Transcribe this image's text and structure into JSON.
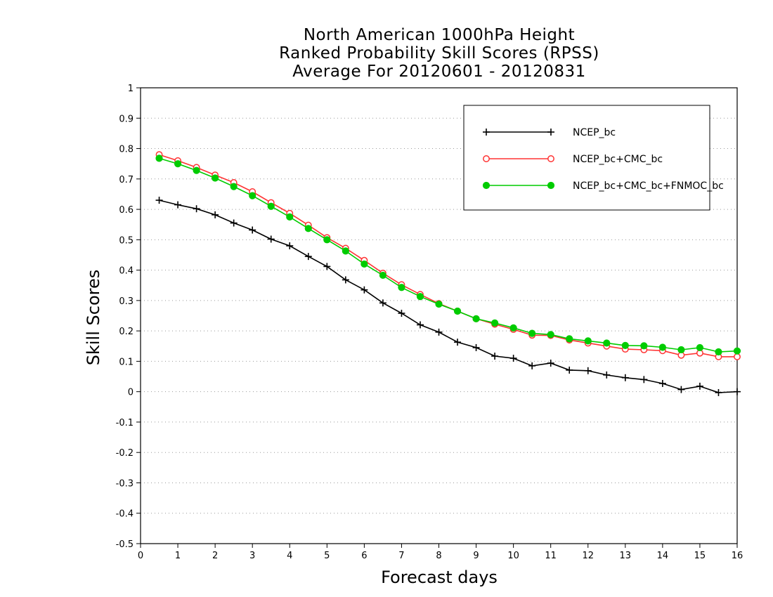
{
  "chart_data": {
    "type": "line",
    "title": [
      "North American 1000hPa Height",
      "Ranked Probability Skill Scores (RPSS)",
      "Average For 20120601 - 20120831"
    ],
    "xlabel": "Forecast days",
    "ylabel": "Skill Scores",
    "xlim": [
      0,
      16
    ],
    "ylim": [
      -0.5,
      1
    ],
    "xticks": [
      0,
      1,
      2,
      3,
      4,
      5,
      6,
      7,
      8,
      9,
      10,
      11,
      12,
      13,
      14,
      15,
      16
    ],
    "yticks": [
      -0.5,
      -0.4,
      -0.3,
      -0.2,
      -0.1,
      0,
      0.1,
      0.2,
      0.3,
      0.4,
      0.5,
      0.6,
      0.7,
      0.8,
      0.9,
      1
    ],
    "ytick_labels": [
      "-0.5",
      "-0.4",
      "-0.3",
      "-0.2",
      "-0.1",
      "0",
      "0.1",
      "0.2",
      "0.3",
      "0.4",
      "0.5",
      "0.6",
      "0.7",
      "0.8",
      "0.9",
      "1"
    ],
    "grid": "horizontal dotted",
    "legend_position": "top-right",
    "x": [
      0.5,
      1,
      1.5,
      2,
      2.5,
      3,
      3.5,
      4,
      4.5,
      5,
      5.5,
      6,
      6.5,
      7,
      7.5,
      8,
      8.5,
      9,
      9.5,
      10,
      10.5,
      11,
      11.5,
      12,
      12.5,
      13,
      13.5,
      14,
      14.5,
      15,
      15.5,
      16
    ],
    "series": [
      {
        "name": "NCEP_bc",
        "color": "#000000",
        "marker": "plus",
        "values": [
          0.63,
          0.615,
          0.602,
          0.582,
          0.555,
          0.532,
          0.502,
          0.48,
          0.445,
          0.412,
          0.368,
          0.335,
          0.292,
          0.258,
          0.22,
          0.196,
          0.163,
          0.145,
          0.117,
          0.11,
          0.085,
          0.094,
          0.071,
          0.069,
          0.055,
          0.046,
          0.04,
          0.027,
          0.007,
          0.018,
          -0.003,
          0.0
        ]
      },
      {
        "name": "NCEP_bc+CMC_bc",
        "color": "#ff3333",
        "marker": "open-circle",
        "values": [
          0.78,
          0.76,
          0.738,
          0.713,
          0.688,
          0.658,
          0.622,
          0.587,
          0.548,
          0.507,
          0.472,
          0.432,
          0.39,
          0.352,
          0.32,
          0.29,
          0.265,
          0.24,
          0.222,
          0.205,
          0.186,
          0.185,
          0.17,
          0.16,
          0.15,
          0.14,
          0.138,
          0.135,
          0.12,
          0.127,
          0.115,
          0.115
        ]
      },
      {
        "name": "NCEP_bc+CMC_bc+FNMOC_bc",
        "color": "#00cc00",
        "marker": "filled-circle",
        "values": [
          0.768,
          0.75,
          0.728,
          0.703,
          0.675,
          0.645,
          0.61,
          0.575,
          0.537,
          0.5,
          0.463,
          0.42,
          0.383,
          0.343,
          0.313,
          0.288,
          0.265,
          0.24,
          0.226,
          0.21,
          0.192,
          0.188,
          0.174,
          0.167,
          0.16,
          0.152,
          0.151,
          0.146,
          0.138,
          0.145,
          0.131,
          0.134
        ]
      }
    ]
  }
}
